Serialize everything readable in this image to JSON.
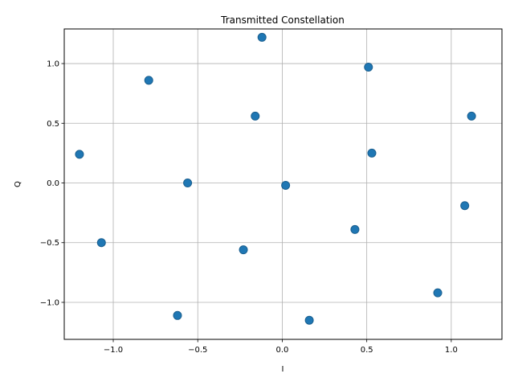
{
  "chart_data": {
    "type": "scatter",
    "title": "Transmitted Constellation",
    "xlabel": "I",
    "ylabel": "Q",
    "xlim": [
      -1.29,
      1.3
    ],
    "ylim": [
      -1.31,
      1.29
    ],
    "xticks": [
      -1.0,
      -0.5,
      0.0,
      0.5,
      1.0
    ],
    "xtick_labels": [
      "−1.0",
      "−0.5",
      "0.0",
      "0.5",
      "1.0"
    ],
    "yticks": [
      -1.0,
      -0.5,
      0.0,
      0.5,
      1.0
    ],
    "ytick_labels": [
      "−1.0",
      "−0.5",
      "0.0",
      "0.5",
      "1.0"
    ],
    "grid": true,
    "marker_color": "#1f77b4",
    "marker_edge_color": "#1a5f8f",
    "points": [
      {
        "x": -0.12,
        "y": 1.22
      },
      {
        "x": 0.51,
        "y": 0.97
      },
      {
        "x": -0.79,
        "y": 0.86
      },
      {
        "x": -0.16,
        "y": 0.56
      },
      {
        "x": 1.12,
        "y": 0.56
      },
      {
        "x": -1.2,
        "y": 0.24
      },
      {
        "x": 0.53,
        "y": 0.25
      },
      {
        "x": -0.56,
        "y": 0.0
      },
      {
        "x": 0.02,
        "y": -0.02
      },
      {
        "x": 1.08,
        "y": -0.19
      },
      {
        "x": 0.43,
        "y": -0.39
      },
      {
        "x": -1.07,
        "y": -0.5
      },
      {
        "x": -0.23,
        "y": -0.56
      },
      {
        "x": 0.92,
        "y": -0.92
      },
      {
        "x": -0.62,
        "y": -1.11
      },
      {
        "x": 0.16,
        "y": -1.15
      }
    ]
  }
}
